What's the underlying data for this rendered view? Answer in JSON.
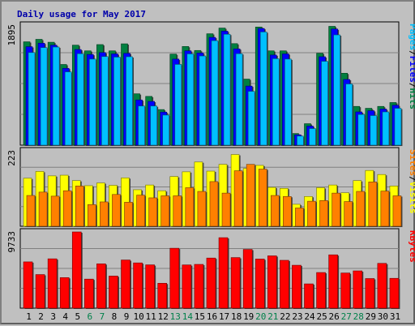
{
  "chart_data": {
    "type": "bar",
    "title": "Daily usage for May 2017",
    "categories": [
      "1",
      "2",
      "3",
      "4",
      "5",
      "6",
      "7",
      "8",
      "9",
      "10",
      "11",
      "12",
      "13",
      "14",
      "15",
      "16",
      "17",
      "18",
      "19",
      "20",
      "21",
      "22",
      "23",
      "24",
      "25",
      "26",
      "27",
      "28",
      "29",
      "30",
      "31"
    ],
    "weekend_days": [
      "6",
      "7",
      "13",
      "14",
      "20",
      "21",
      "27",
      "28"
    ],
    "panels": [
      {
        "id": "top",
        "max_label": "1895",
        "ymax": 1895,
        "legend": [
          "Pages",
          "/",
          "Files",
          "/",
          "Hits"
        ],
        "legend_colors": [
          "#00c0ff",
          "#000000",
          "#0000ff",
          "#000000",
          "#008040"
        ],
        "series": [
          {
            "name": "Hits",
            "color": "#008040",
            "values": [
              1632,
              1671,
              1625,
              1274,
              1579,
              1489,
              1588,
              1489,
              1600,
              811,
              770,
              562,
              1438,
              1558,
              1495,
              1759,
              1849,
              1603,
              1043,
              1865,
              1489,
              1489,
              184,
              339,
              1451,
              1876,
              1136,
              612,
              582,
              612,
              673
            ]
          },
          {
            "name": "Files",
            "color": "#0000ff",
            "values": [
              1555,
              1610,
              1579,
              1213,
              1510,
              1432,
              1462,
              1441,
              1450,
              714,
              691,
              522,
              1359,
              1490,
              1455,
              1702,
              1800,
              1520,
              933,
              1842,
              1423,
              1441,
              163,
              301,
              1396,
              1834,
              1037,
              525,
              544,
              570,
              630
            ]
          },
          {
            "name": "Pages",
            "color": "#00c0ff",
            "values": [
              1462,
              1540,
              1549,
              1157,
              1444,
              1359,
              1399,
              1390,
              1396,
              618,
              618,
              475,
              1275,
              1441,
              1408,
              1650,
              1751,
              1444,
              850,
              1787,
              1365,
              1359,
              143,
              262,
              1324,
              1741,
              966,
              484,
              467,
              525,
              582
            ]
          }
        ]
      },
      {
        "id": "middle",
        "max_label": "223",
        "ymax": 223,
        "legend": [
          "Sites",
          "/",
          "Visits"
        ],
        "legend_colors": [
          "#ff8000",
          "#000000",
          "#ffff00"
        ],
        "series": [
          {
            "name": "Visits",
            "color": "#ffff00",
            "values": [
              142,
              162,
              149,
              151,
              135,
              120,
              128,
              121,
              143,
              108,
              122,
              105,
              147,
              161,
              190,
              163,
              183,
              212,
              171,
              180,
              115,
              112,
              65,
              88,
              114,
              122,
              99,
              135,
              165,
              153,
              119
            ]
          },
          {
            "name": "Sites",
            "color": "#ff8000",
            "values": [
              91,
              101,
              89,
              105,
              119,
              64,
              72,
              94,
              71,
              92,
              84,
              90,
              90,
              114,
              103,
              132,
              98,
              164,
              183,
              169,
              91,
              88,
              54,
              74,
              76,
              98,
              73,
              103,
              131,
              104,
              90
            ]
          }
        ]
      },
      {
        "id": "bottom",
        "max_label": "9733",
        "ymax": 9733,
        "legend": [
          "KBytes"
        ],
        "legend_colors": [
          "#ff0000"
        ],
        "series": [
          {
            "name": "KBytes",
            "color": "#ff0000",
            "values": [
              5910,
              4290,
              6300,
              3900,
              9733,
              3710,
              5660,
              4100,
              6150,
              5780,
              5530,
              3180,
              7650,
              5520,
              5590,
              6400,
              9000,
              6460,
              7500,
              6270,
              6680,
              6110,
              5480,
              3100,
              4550,
              6810,
              4490,
              4760,
              3780,
              5720,
              3810
            ]
          }
        ]
      }
    ]
  }
}
